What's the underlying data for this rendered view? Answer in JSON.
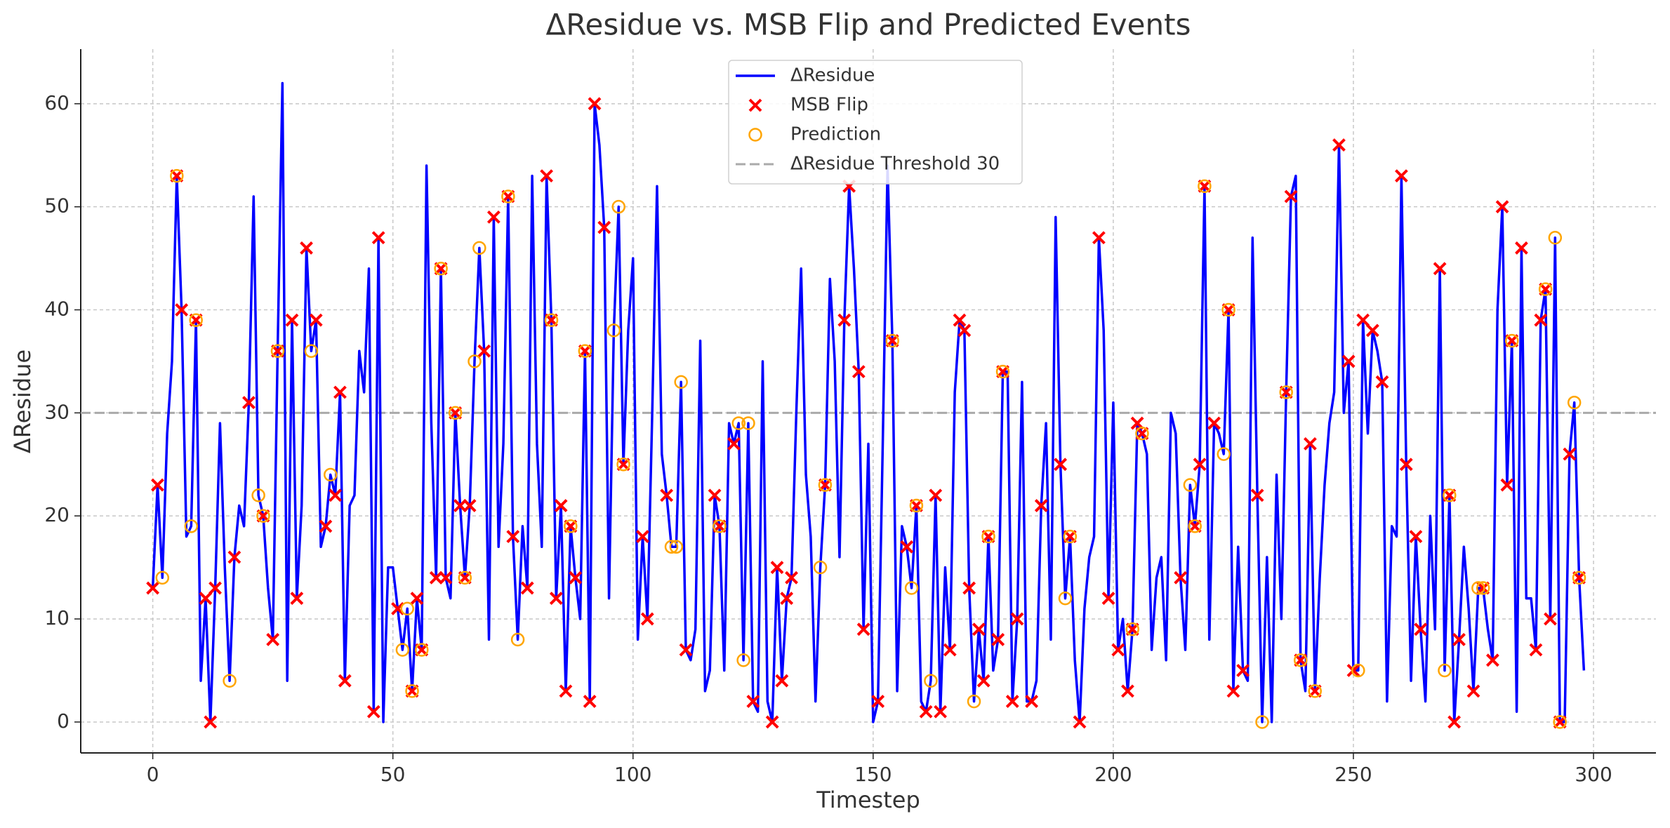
{
  "chart_data": {
    "type": "line",
    "title": "ΔResidue vs. MSB Flip and Predicted Events",
    "xlabel": "Timestep",
    "ylabel": "ΔResidue",
    "xlim": [
      -15,
      313
    ],
    "ylim": [
      -3,
      65.3
    ],
    "xticks": [
      0,
      50,
      100,
      150,
      200,
      250,
      300
    ],
    "yticks": [
      0,
      10,
      20,
      30,
      40,
      50,
      60
    ],
    "grid": true,
    "legend": "upper center",
    "series": [
      {
        "name": "ΔResidue",
        "type": "line",
        "color": "#0000ff",
        "x": [
          0,
          1,
          2,
          3,
          4,
          5,
          6,
          7,
          8,
          9,
          10,
          11,
          12,
          13,
          14,
          15,
          16,
          17,
          18,
          19,
          20,
          21,
          22,
          23,
          24,
          25,
          26,
          27,
          28,
          29,
          30,
          31,
          32,
          33,
          34,
          35,
          36,
          37,
          38,
          39,
          40,
          41,
          42,
          43,
          44,
          45,
          46,
          47,
          48,
          49,
          50,
          51,
          52,
          53,
          54,
          55,
          56,
          57,
          58,
          59,
          60,
          61,
          62,
          63,
          64,
          65,
          66,
          67,
          68,
          69,
          70,
          71,
          72,
          73,
          74,
          75,
          76,
          77,
          78,
          79,
          80,
          81,
          82,
          83,
          84,
          85,
          86,
          87,
          88,
          89,
          90,
          91,
          92,
          93,
          94,
          95,
          96,
          97,
          98,
          99,
          100,
          101,
          102,
          103,
          104,
          105,
          106,
          107,
          108,
          109,
          110,
          111,
          112,
          113,
          114,
          115,
          116,
          117,
          118,
          119,
          120,
          121,
          122,
          123,
          124,
          125,
          126,
          127,
          128,
          129,
          130,
          131,
          132,
          133,
          134,
          135,
          136,
          137,
          138,
          139,
          140,
          141,
          142,
          143,
          144,
          145,
          146,
          147,
          148,
          149,
          150,
          151,
          152,
          153,
          154,
          155,
          156,
          157,
          158,
          159,
          160,
          161,
          162,
          163,
          164,
          165,
          166,
          167,
          168,
          169,
          170,
          171,
          172,
          173,
          174,
          175,
          176,
          177,
          178,
          179,
          180,
          181,
          182,
          183,
          184,
          185,
          186,
          187,
          188,
          189,
          190,
          191,
          192,
          193,
          194,
          195,
          196,
          197,
          198,
          199,
          200,
          201,
          202,
          203,
          204,
          205,
          206,
          207,
          208,
          209,
          210,
          211,
          212,
          213,
          214,
          215,
          216,
          217,
          218,
          219,
          220,
          221,
          222,
          223,
          224,
          225,
          226,
          227,
          228,
          229,
          230,
          231,
          232,
          233,
          234,
          235,
          236,
          237,
          238,
          239,
          240,
          241,
          242,
          243,
          244,
          245,
          246,
          247,
          248,
          249,
          250,
          251,
          252,
          253,
          254,
          255,
          256,
          257,
          258,
          259,
          260,
          261,
          262,
          263,
          264,
          265,
          266,
          267,
          268,
          269,
          270,
          271,
          272,
          273,
          274,
          275,
          276,
          277,
          278,
          279,
          280,
          281,
          282,
          283,
          284,
          285,
          286,
          287,
          288,
          289,
          290,
          291,
          292,
          293,
          294,
          295,
          296,
          297,
          298
        ],
        "values": [
          13,
          23,
          14,
          28,
          35,
          53,
          40,
          18,
          19,
          39,
          4,
          12,
          0,
          13,
          29,
          15,
          4,
          16,
          21,
          19,
          31,
          51,
          22,
          20,
          13,
          8,
          36,
          62,
          4,
          39,
          12,
          21,
          46,
          36,
          39,
          17,
          19,
          24,
          22,
          32,
          4,
          21,
          22,
          36,
          32,
          44,
          1,
          47,
          0,
          15,
          15,
          11,
          7,
          11,
          3,
          12,
          7,
          54,
          29,
          14,
          44,
          14,
          12,
          30,
          21,
          14,
          21,
          35,
          46,
          36,
          8,
          49,
          17,
          27,
          51,
          18,
          8,
          19,
          13,
          53,
          27,
          17,
          53,
          39,
          12,
          21,
          3,
          19,
          14,
          10,
          36,
          2,
          60,
          56,
          48,
          12,
          38,
          50,
          25,
          38,
          45,
          8,
          18,
          10,
          30,
          52,
          26,
          22,
          17,
          17,
          33,
          7,
          6,
          9,
          37,
          3,
          5,
          22,
          19,
          5,
          29,
          27,
          29,
          6,
          29,
          2,
          1,
          35,
          2,
          0,
          15,
          4,
          12,
          14,
          30,
          44,
          24,
          18,
          2,
          15,
          23,
          43,
          35,
          16,
          39,
          52,
          44,
          34,
          9,
          27,
          0,
          2,
          27,
          54,
          37,
          3,
          19,
          17,
          13,
          21,
          2,
          1,
          4,
          22,
          1,
          15,
          7,
          32,
          39,
          38,
          13,
          2,
          9,
          4,
          18,
          5,
          8,
          34,
          34,
          2,
          10,
          33,
          2,
          2,
          4,
          21,
          29,
          8,
          49,
          25,
          12,
          18,
          6,
          0,
          11,
          16,
          18,
          47,
          38,
          12,
          31,
          7,
          10,
          3,
          9,
          29,
          28,
          26,
          7,
          14,
          16,
          6,
          30,
          28,
          14,
          7,
          23,
          19,
          25,
          52,
          8,
          29,
          28,
          26,
          40,
          3,
          17,
          5,
          4,
          47,
          22,
          0,
          16,
          0,
          24,
          10,
          32,
          51,
          53,
          6,
          3,
          27,
          3,
          14,
          23,
          29,
          32,
          56,
          30,
          35,
          5,
          5,
          39,
          28,
          38,
          36,
          33,
          2,
          19,
          18,
          53,
          25,
          4,
          18,
          9,
          2,
          20,
          9,
          44,
          5,
          22,
          0,
          8,
          17,
          11,
          3,
          13,
          13,
          9,
          6,
          40,
          50,
          23,
          37,
          1,
          46,
          12,
          12,
          7,
          39,
          42,
          10,
          47,
          0,
          0,
          26,
          31,
          14,
          5
        ]
      },
      {
        "name": "MSB Flip",
        "type": "scatter",
        "marker": "x",
        "color": "#ff0000",
        "x": [
          0,
          1,
          5,
          6,
          9,
          11,
          12,
          13,
          17,
          20,
          23,
          25,
          26,
          29,
          30,
          32,
          34,
          36,
          38,
          39,
          40,
          46,
          47,
          51,
          54,
          55,
          56,
          59,
          60,
          61,
          63,
          64,
          65,
          66,
          69,
          71,
          74,
          75,
          78,
          82,
          83,
          84,
          85,
          86,
          87,
          88,
          90,
          91,
          92,
          94,
          98,
          102,
          103,
          107,
          111,
          117,
          118,
          121,
          125,
          129,
          130,
          131,
          132,
          133,
          140,
          144,
          145,
          147,
          148,
          151,
          154,
          157,
          159,
          161,
          163,
          164,
          166,
          168,
          169,
          170,
          172,
          173,
          174,
          176,
          177,
          179,
          180,
          183,
          185,
          189,
          191,
          193,
          197,
          199,
          201,
          203,
          204,
          205,
          206,
          214,
          217,
          218,
          219,
          221,
          224,
          225,
          227,
          230,
          236,
          237,
          239,
          241,
          242,
          247,
          249,
          250,
          252,
          254,
          256,
          260,
          261,
          263,
          264,
          268,
          270,
          271,
          272,
          275,
          277,
          279,
          281,
          282,
          283,
          285,
          288,
          289,
          290,
          291,
          293,
          295,
          297
        ],
        "values": [
          13,
          23,
          53,
          40,
          39,
          12,
          0,
          13,
          16,
          31,
          20,
          8,
          36,
          39,
          12,
          46,
          39,
          19,
          22,
          32,
          4,
          1,
          47,
          11,
          3,
          12,
          7,
          14,
          44,
          14,
          30,
          21,
          14,
          21,
          36,
          49,
          51,
          18,
          13,
          53,
          39,
          12,
          21,
          3,
          19,
          14,
          36,
          2,
          60,
          48,
          25,
          18,
          10,
          22,
          7,
          22,
          19,
          27,
          2,
          0,
          15,
          4,
          12,
          14,
          23,
          39,
          52,
          34,
          9,
          2,
          37,
          17,
          21,
          1,
          22,
          1,
          7,
          39,
          38,
          13,
          9,
          4,
          18,
          8,
          34,
          2,
          10,
          2,
          21,
          25,
          18,
          0,
          47,
          12,
          7,
          3,
          9,
          29,
          28,
          14,
          19,
          25,
          52,
          29,
          40,
          3,
          5,
          22,
          32,
          51,
          6,
          27,
          3,
          56,
          35,
          5,
          39,
          38,
          33,
          53,
          25,
          18,
          9,
          44,
          22,
          0,
          8,
          3,
          13,
          6,
          50,
          23,
          37,
          46,
          7,
          39,
          42,
          10,
          0,
          26,
          14
        ]
      },
      {
        "name": "Prediction",
        "type": "scatter",
        "marker": "o",
        "color": "#ffa500",
        "x": [
          2,
          5,
          8,
          9,
          16,
          22,
          23,
          26,
          33,
          37,
          52,
          53,
          54,
          56,
          60,
          63,
          65,
          67,
          68,
          74,
          76,
          83,
          87,
          90,
          96,
          97,
          98,
          108,
          109,
          110,
          118,
          122,
          123,
          124,
          139,
          140,
          154,
          158,
          159,
          162,
          171,
          174,
          177,
          190,
          191,
          204,
          206,
          216,
          217,
          219,
          223,
          224,
          231,
          236,
          239,
          242,
          251,
          269,
          270,
          276,
          277,
          283,
          290,
          292,
          293,
          296,
          297
        ],
        "values": [
          14,
          53,
          19,
          39,
          4,
          22,
          20,
          36,
          36,
          24,
          7,
          11,
          3,
          7,
          44,
          30,
          14,
          35,
          46,
          51,
          8,
          39,
          19,
          36,
          38,
          50,
          25,
          17,
          17,
          33,
          19,
          29,
          6,
          29,
          15,
          23,
          37,
          13,
          21,
          4,
          2,
          18,
          34,
          12,
          18,
          9,
          28,
          23,
          19,
          52,
          26,
          40,
          0,
          32,
          6,
          3,
          5,
          5,
          22,
          13,
          13,
          37,
          42,
          47,
          0,
          31,
          14
        ]
      }
    ],
    "hlines": [
      {
        "name": "ΔResidue Threshold 30",
        "value": 30,
        "color": "#aaaaaa"
      }
    ]
  }
}
